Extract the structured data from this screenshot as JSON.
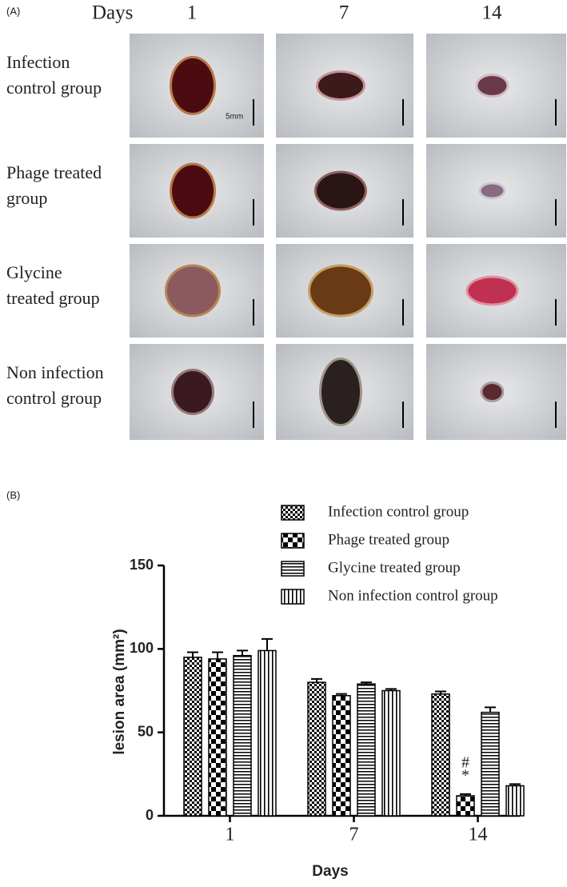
{
  "panel_a": {
    "panel_label": "(A)",
    "days_label": "Days",
    "columns": [
      "1",
      "7",
      "14"
    ],
    "row_labels": [
      [
        "Infection",
        "control group"
      ],
      [
        "Phage treated",
        "group"
      ],
      [
        "Glycine",
        "treated group"
      ],
      [
        "Non infection",
        "control group"
      ]
    ],
    "scale_label": "5mm"
  },
  "chart_data": {
    "type": "bar",
    "panel_label": "(B)",
    "x_label": "Days",
    "y_label": "lesion area (mm²)",
    "categories": [
      "1",
      "7",
      "14"
    ],
    "series": [
      {
        "name": "Infection control group",
        "color": "#000000",
        "pattern": "checker-small",
        "values": [
          95,
          80,
          73
        ],
        "errors": [
          3,
          2,
          1.5
        ]
      },
      {
        "name": "Phage treated group",
        "color": "#000000",
        "pattern": "checker-large",
        "values": [
          94,
          72,
          12
        ],
        "errors": [
          4,
          1,
          1
        ]
      },
      {
        "name": "Glycine treated group",
        "color": "#000000",
        "pattern": "horizontal",
        "values": [
          96,
          79,
          62
        ],
        "errors": [
          3,
          1,
          3
        ]
      },
      {
        "name": "Non infection control group",
        "color": "#000000",
        "pattern": "vertical",
        "values": [
          99,
          75,
          18
        ],
        "errors": [
          7,
          1,
          1
        ]
      }
    ],
    "annotations": [
      "#",
      "*"
    ],
    "ylim": [
      0,
      150
    ],
    "yticks": [
      0,
      50,
      100,
      150
    ],
    "grid": false
  }
}
